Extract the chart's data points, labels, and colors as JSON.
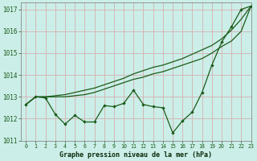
{
  "title": "Graphe pression niveau de la mer (hPa)",
  "bg_color": "#cceee8",
  "grid_color": "#d4b8b8",
  "line_color": "#1a5c1a",
  "xlim": [
    -0.5,
    23
  ],
  "ylim": [
    1011,
    1017.3
  ],
  "yticks": [
    1011,
    1012,
    1013,
    1014,
    1015,
    1016,
    1017
  ],
  "xticks": [
    0,
    1,
    2,
    3,
    4,
    5,
    6,
    7,
    8,
    9,
    10,
    11,
    12,
    13,
    14,
    15,
    16,
    17,
    18,
    19,
    20,
    21,
    22,
    23
  ],
  "hours": [
    0,
    1,
    2,
    3,
    4,
    5,
    6,
    7,
    8,
    9,
    10,
    11,
    12,
    13,
    14,
    15,
    16,
    17,
    18,
    19,
    20,
    21,
    22,
    23
  ],
  "series1": [
    1012.65,
    1013.0,
    1012.95,
    1012.2,
    1011.75,
    1012.15,
    1011.85,
    1011.85,
    1012.6,
    1012.55,
    1012.7,
    1013.3,
    1012.65,
    1012.55,
    1012.5,
    1011.35,
    1011.9,
    1012.3,
    1013.2,
    1014.45,
    1015.5,
    1016.2,
    1017.0,
    1017.15
  ],
  "series2": [
    1012.65,
    1013.0,
    1013.0,
    1013.0,
    1013.0,
    1013.05,
    1013.1,
    1013.2,
    1013.35,
    1013.5,
    1013.65,
    1013.8,
    1013.9,
    1014.05,
    1014.15,
    1014.3,
    1014.45,
    1014.6,
    1014.75,
    1015.0,
    1015.3,
    1015.55,
    1016.0,
    1017.15
  ],
  "series3": [
    1012.65,
    1013.0,
    1013.0,
    1013.05,
    1013.1,
    1013.2,
    1013.3,
    1013.4,
    1013.55,
    1013.7,
    1013.85,
    1014.05,
    1014.2,
    1014.35,
    1014.45,
    1014.6,
    1014.75,
    1014.95,
    1015.15,
    1015.35,
    1015.65,
    1016.05,
    1016.55,
    1017.15
  ]
}
